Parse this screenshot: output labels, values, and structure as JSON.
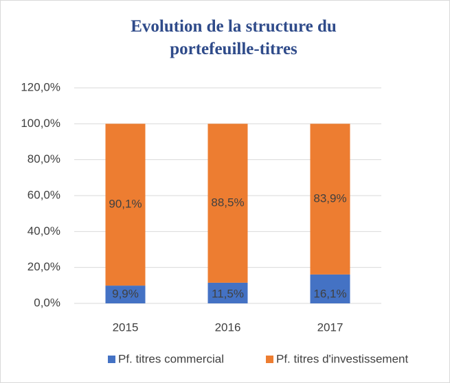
{
  "chart_data": {
    "type": "stacked_bar",
    "title": "Evolution de la structure du portefeuille-titres",
    "categories": [
      "2015",
      "2016",
      "2017"
    ],
    "series": [
      {
        "name": "Pf. titres commercial",
        "color": "#4472c4",
        "values": [
          9.9,
          11.5,
          16.1
        ],
        "value_labels": [
          "9,9%",
          "11,5%",
          "16,1%"
        ]
      },
      {
        "name": "Pf. titres d'investissement",
        "color": "#ed7d31",
        "values": [
          90.1,
          88.5,
          83.9
        ],
        "value_labels": [
          "90,1%",
          "88,5%",
          "83,9%"
        ]
      }
    ],
    "ylim": [
      0,
      120
    ],
    "yticks": [
      {
        "value": 0,
        "label": "0,0%"
      },
      {
        "value": 20,
        "label": "20,0%"
      },
      {
        "value": 40,
        "label": "40,0%"
      },
      {
        "value": 60,
        "label": "60,0%"
      },
      {
        "value": 80,
        "label": "80,0%"
      },
      {
        "value": 100,
        "label": "100,0%"
      },
      {
        "value": 120,
        "label": "120,0%"
      }
    ],
    "grid": true,
    "legend": "bottom"
  }
}
